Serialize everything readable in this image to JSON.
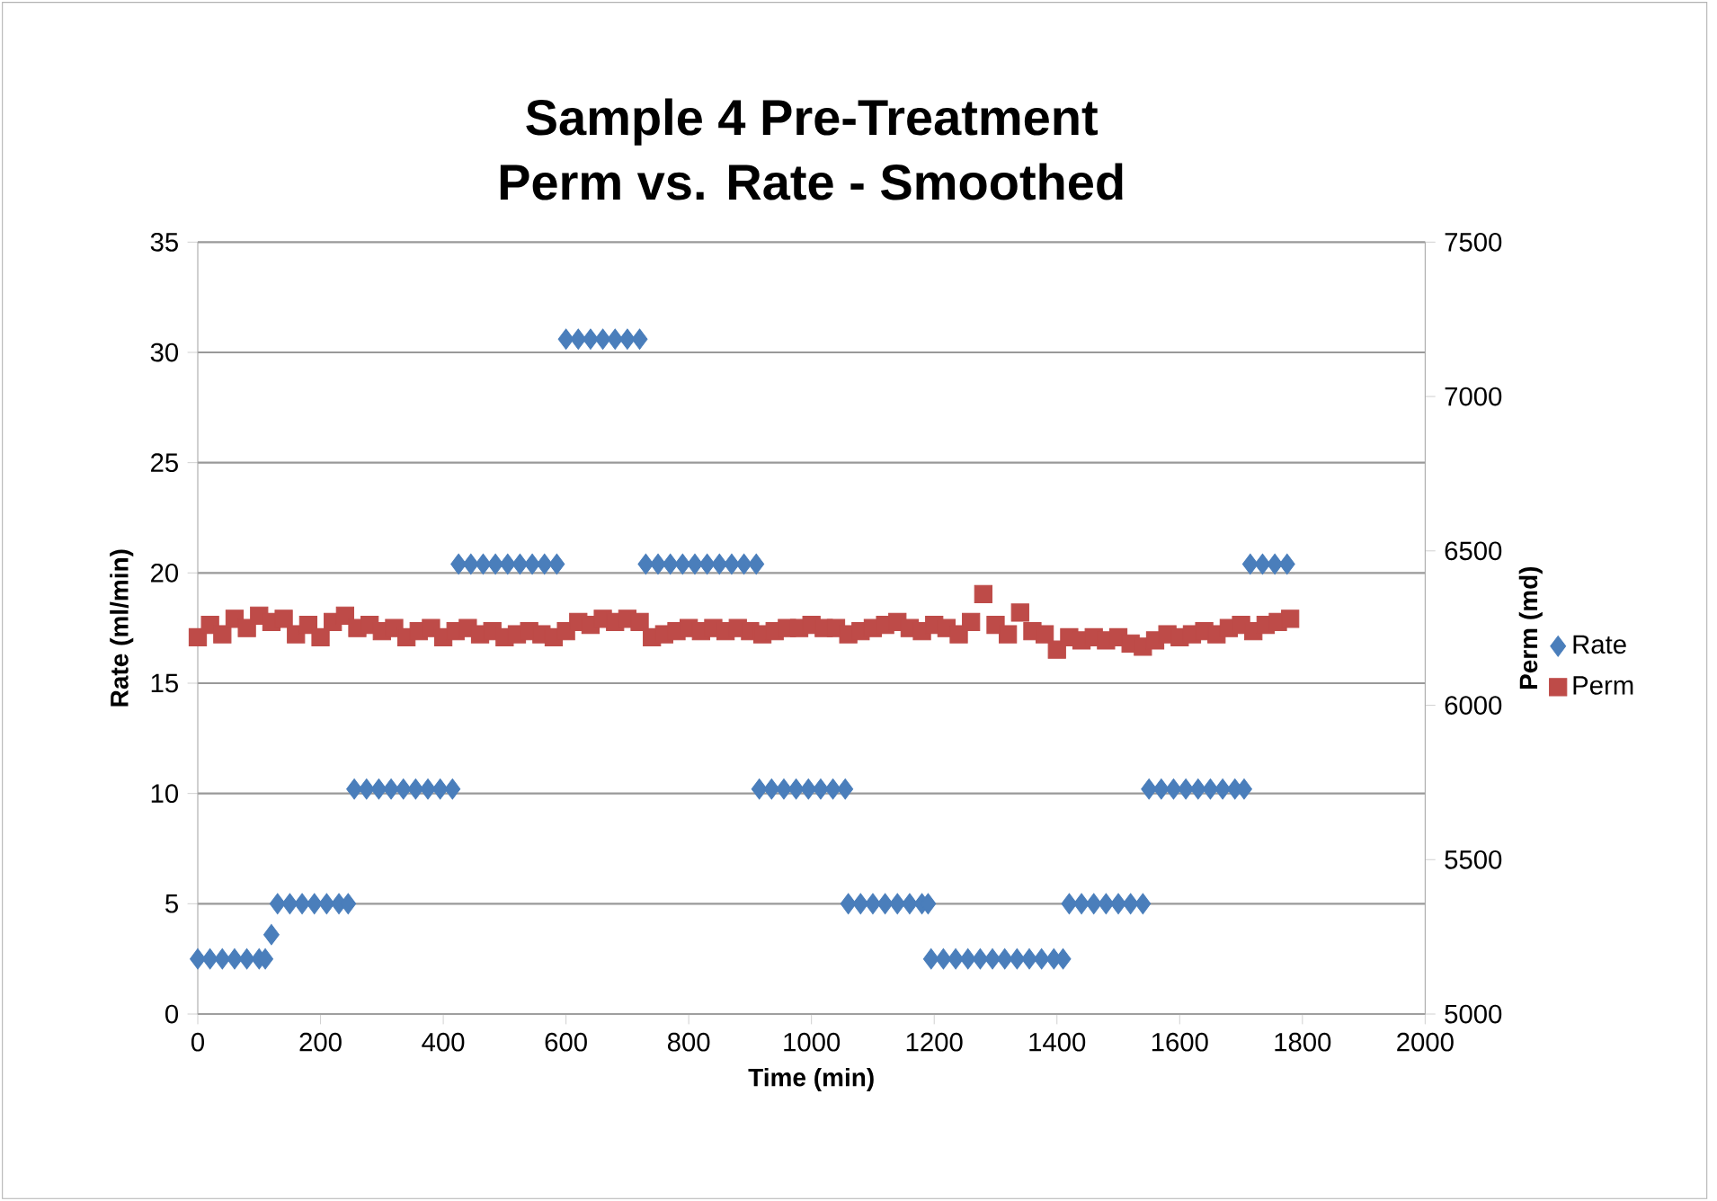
{
  "chart_data": {
    "type": "scatter",
    "title": "Sample 4 Pre-Treatment\nPerm vs. Rate - Smoothed",
    "xlabel": "Time (min)",
    "ylabel": "Rate (ml/min)",
    "y2label": "Perm (md)",
    "xlim": [
      0,
      2000
    ],
    "xticks": [
      0,
      200,
      400,
      600,
      800,
      1000,
      1200,
      1400,
      1600,
      1800,
      2000
    ],
    "ylim": [
      0,
      35
    ],
    "yticks": [
      0,
      5,
      10,
      15,
      20,
      25,
      30,
      35
    ],
    "y2lim": [
      5000,
      7500
    ],
    "y2ticks": [
      5000,
      5500,
      6000,
      6500,
      7000,
      7500
    ],
    "grid": "y",
    "legend": "right",
    "series": [
      {
        "name": "Rate",
        "color": "#4a7ebb",
        "marker": "diamond",
        "x": [
          0,
          20,
          40,
          60,
          80,
          100,
          110,
          120,
          130,
          150,
          170,
          190,
          210,
          230,
          245,
          255,
          275,
          295,
          315,
          335,
          355,
          375,
          395,
          415,
          425,
          445,
          465,
          485,
          505,
          525,
          545,
          565,
          585,
          600,
          620,
          640,
          660,
          680,
          700,
          720,
          730,
          750,
          770,
          790,
          810,
          830,
          850,
          870,
          890,
          910,
          915,
          935,
          955,
          975,
          995,
          1015,
          1035,
          1055,
          1060,
          1080,
          1100,
          1120,
          1140,
          1160,
          1180,
          1190,
          1195,
          1215,
          1235,
          1255,
          1275,
          1295,
          1315,
          1335,
          1355,
          1375,
          1395,
          1410,
          1420,
          1440,
          1460,
          1480,
          1500,
          1520,
          1540,
          1550,
          1570,
          1590,
          1610,
          1630,
          1650,
          1670,
          1690,
          1705,
          1715,
          1735,
          1755,
          1775
        ],
        "values": [
          2.5,
          2.5,
          2.5,
          2.5,
          2.5,
          2.5,
          2.5,
          3.6,
          5,
          5,
          5,
          5,
          5,
          5,
          5,
          10.2,
          10.2,
          10.2,
          10.2,
          10.2,
          10.2,
          10.2,
          10.2,
          10.2,
          20.4,
          20.4,
          20.4,
          20.4,
          20.4,
          20.4,
          20.4,
          20.4,
          20.4,
          30.6,
          30.6,
          30.6,
          30.6,
          30.6,
          30.6,
          30.6,
          20.4,
          20.4,
          20.4,
          20.4,
          20.4,
          20.4,
          20.4,
          20.4,
          20.4,
          20.4,
          10.2,
          10.2,
          10.2,
          10.2,
          10.2,
          10.2,
          10.2,
          10.2,
          5,
          5,
          5,
          5,
          5,
          5,
          5,
          5,
          2.5,
          2.5,
          2.5,
          2.5,
          2.5,
          2.5,
          2.5,
          2.5,
          2.5,
          2.5,
          2.5,
          2.5,
          5,
          5,
          5,
          5,
          5,
          5,
          5,
          10.2,
          10.2,
          10.2,
          10.2,
          10.2,
          10.2,
          10.2,
          10.2,
          10.2,
          20.4,
          20.4,
          20.4,
          20.4
        ]
      },
      {
        "name": "Perm",
        "color": "#be4b48",
        "marker": "square",
        "axis": "y2",
        "x": [
          0,
          20,
          40,
          60,
          80,
          100,
          120,
          140,
          160,
          180,
          200,
          220,
          240,
          260,
          280,
          300,
          320,
          340,
          360,
          380,
          400,
          420,
          440,
          460,
          480,
          500,
          520,
          540,
          560,
          580,
          600,
          620,
          640,
          660,
          680,
          700,
          720,
          740,
          760,
          780,
          800,
          820,
          840,
          860,
          880,
          900,
          920,
          940,
          960,
          980,
          1000,
          1020,
          1040,
          1060,
          1080,
          1100,
          1120,
          1140,
          1160,
          1180,
          1200,
          1220,
          1240,
          1260,
          1280,
          1300,
          1320,
          1340,
          1360,
          1380,
          1400,
          1420,
          1440,
          1460,
          1480,
          1500,
          1520,
          1540,
          1560,
          1580,
          1600,
          1620,
          1640,
          1660,
          1680,
          1700,
          1720,
          1740,
          1760,
          1780
        ],
        "values": [
          6220,
          6260,
          6230,
          6280,
          6250,
          6290,
          6270,
          6280,
          6230,
          6260,
          6220,
          6270,
          6290,
          6250,
          6260,
          6240,
          6250,
          6220,
          6240,
          6250,
          6220,
          6240,
          6250,
          6230,
          6240,
          6220,
          6230,
          6240,
          6230,
          6220,
          6240,
          6270,
          6260,
          6280,
          6270,
          6280,
          6270,
          6220,
          6230,
          6240,
          6250,
          6240,
          6250,
          6240,
          6250,
          6240,
          6230,
          6240,
          6250,
          6250,
          6260,
          6250,
          6250,
          6230,
          6240,
          6250,
          6260,
          6270,
          6250,
          6240,
          6260,
          6250,
          6230,
          6270,
          6360,
          6260,
          6230,
          6300,
          6240,
          6230,
          6180,
          6220,
          6210,
          6220,
          6210,
          6220,
          6200,
          6190,
          6210,
          6230,
          6220,
          6230,
          6240,
          6230,
          6250,
          6260,
          6240,
          6260,
          6270,
          6280
        ]
      }
    ]
  }
}
